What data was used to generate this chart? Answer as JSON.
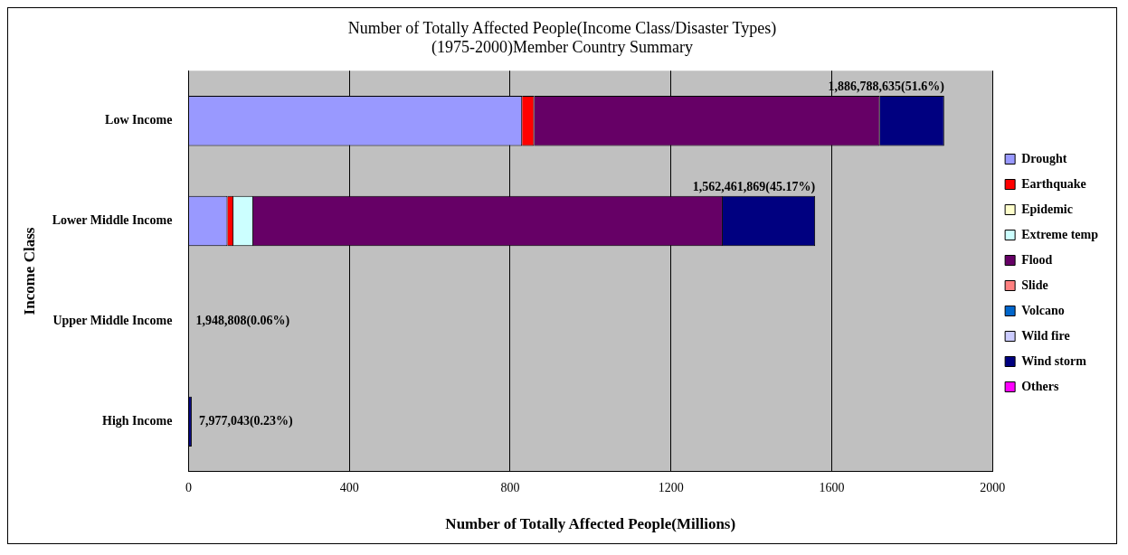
{
  "chart_data": {
    "type": "bar",
    "orientation": "horizontal",
    "stacked": true,
    "title": [
      "Number of Totally Affected People(Income Class/Disaster Types)",
      "(1975-2000)Member Country Summary"
    ],
    "xlabel": "Number of Totally Affected People(Millions)",
    "ylabel": "Income Class",
    "categories": [
      "Low Income",
      "Lower Middle Income",
      "Upper Middle Income",
      "High Income"
    ],
    "series": [
      {
        "name": "Drought",
        "color": "#9999ff",
        "values": [
          830,
          97,
          0,
          0
        ]
      },
      {
        "name": "Earthquake",
        "color": "#ff0000",
        "values": [
          30,
          15,
          0,
          0
        ]
      },
      {
        "name": "Epidemic",
        "color": "#ffffcc",
        "values": [
          0,
          0,
          0,
          0
        ]
      },
      {
        "name": "Extreme temp",
        "color": "#ccffff",
        "values": [
          0,
          49,
          0,
          0
        ]
      },
      {
        "name": "Flood",
        "color": "#660066",
        "values": [
          860,
          1168,
          0,
          0
        ]
      },
      {
        "name": "Slide",
        "color": "#ff8080",
        "values": [
          0,
          0,
          0,
          0
        ]
      },
      {
        "name": "Volcano",
        "color": "#0066cc",
        "values": [
          0,
          0,
          0,
          0
        ]
      },
      {
        "name": "Wild fire",
        "color": "#ccccff",
        "values": [
          0,
          0,
          0,
          0
        ]
      },
      {
        "name": "Wind storm",
        "color": "#000080",
        "values": [
          160,
          230,
          null,
          8
        ]
      },
      {
        "name": "Others",
        "color": "#ff00ff",
        "values": [
          0,
          0,
          0,
          0
        ]
      }
    ],
    "totals": [
      "1,886,788,635(51.6%)",
      "1,562,461,869(45.17%)",
      "1,948,808(0.06%)",
      "7,977,043(0.23%)"
    ],
    "xlim": [
      0,
      2000
    ],
    "xticks": [
      0,
      400,
      800,
      1200,
      1600,
      2000
    ],
    "grid": "x",
    "legend": "right"
  }
}
